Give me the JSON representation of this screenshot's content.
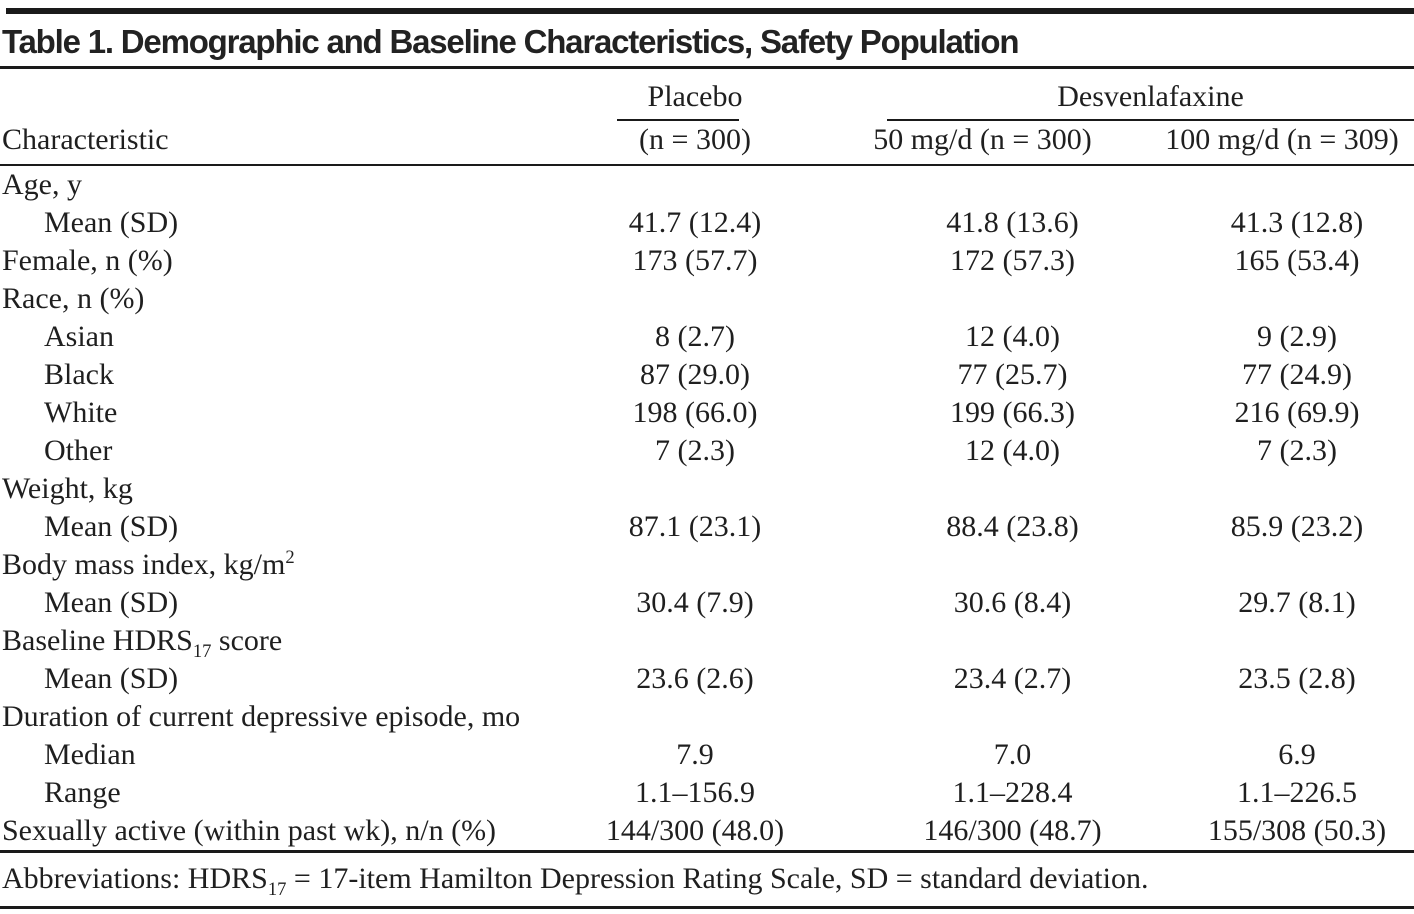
{
  "table": {
    "title": "Table 1. Demographic and Baseline Characteristics, Safety Population",
    "column_groups": {
      "placebo": "Placebo",
      "desvenlafaxine": "Desvenlafaxine"
    },
    "column_headers": {
      "characteristic": "Characteristic",
      "placebo_n": "(n = 300)",
      "dose50": "50 mg/d (n = 300)",
      "dose100": "100 mg/d (n = 309)"
    },
    "rows": [
      {
        "label": [
          "Age, y"
        ],
        "indent": false,
        "values": [
          "",
          "",
          ""
        ]
      },
      {
        "label": [
          "Mean (SD)"
        ],
        "indent": true,
        "values": [
          "41.7 (12.4)",
          "41.8 (13.6)",
          "41.3 (12.8)"
        ]
      },
      {
        "label": [
          "Female, n (%)"
        ],
        "indent": false,
        "values": [
          "173 (57.7)",
          "172 (57.3)",
          "165 (53.4)"
        ]
      },
      {
        "label": [
          "Race, n (%)"
        ],
        "indent": false,
        "values": [
          "",
          "",
          ""
        ]
      },
      {
        "label": [
          "Asian"
        ],
        "indent": true,
        "values": [
          "8 (2.7)",
          "12 (4.0)",
          "9 (2.9)"
        ]
      },
      {
        "label": [
          "Black"
        ],
        "indent": true,
        "values": [
          "87 (29.0)",
          "77 (25.7)",
          "77 (24.9)"
        ]
      },
      {
        "label": [
          "White"
        ],
        "indent": true,
        "values": [
          "198 (66.0)",
          "199 (66.3)",
          "216 (69.9)"
        ]
      },
      {
        "label": [
          "Other"
        ],
        "indent": true,
        "values": [
          "7 (2.3)",
          "12 (4.0)",
          "7 (2.3)"
        ]
      },
      {
        "label": [
          "Weight, kg"
        ],
        "indent": false,
        "values": [
          "",
          "",
          ""
        ]
      },
      {
        "label": [
          "Mean (SD)"
        ],
        "indent": true,
        "values": [
          "87.1 (23.1)",
          "88.4 (23.8)",
          "85.9 (23.2)"
        ]
      },
      {
        "label": [
          "Body mass index, kg/m",
          {
            "sup": "2"
          }
        ],
        "indent": false,
        "values": [
          "",
          "",
          ""
        ]
      },
      {
        "label": [
          "Mean (SD)"
        ],
        "indent": true,
        "values": [
          "30.4 (7.9)",
          "30.6 (8.4)",
          "29.7 (8.1)"
        ]
      },
      {
        "label": [
          "Baseline HDRS",
          {
            "sub": "17"
          },
          " score"
        ],
        "indent": false,
        "values": [
          "",
          "",
          ""
        ]
      },
      {
        "label": [
          "Mean (SD)"
        ],
        "indent": true,
        "values": [
          "23.6 (2.6)",
          "23.4 (2.7)",
          "23.5 (2.8)"
        ]
      },
      {
        "label": [
          "Duration of current depressive episode, mo"
        ],
        "indent": false,
        "values": [
          "",
          "",
          ""
        ]
      },
      {
        "label": [
          "Median"
        ],
        "indent": true,
        "values": [
          "7.9",
          "7.0",
          "6.9"
        ]
      },
      {
        "label": [
          "Range"
        ],
        "indent": true,
        "values": [
          "1.1–156.9",
          "1.1–228.4",
          "1.1–226.5"
        ]
      },
      {
        "label": [
          "Sexually active (within past wk), n/n (%)"
        ],
        "indent": false,
        "values": [
          "144/300 (48.0)",
          "146/300 (48.7)",
          "155/308 (50.3)"
        ]
      }
    ],
    "footnote": [
      "Abbreviations: HDRS",
      {
        "sub": "17"
      },
      " = 17-item Hamilton Depression Rating Scale, SD = standard deviation."
    ]
  }
}
